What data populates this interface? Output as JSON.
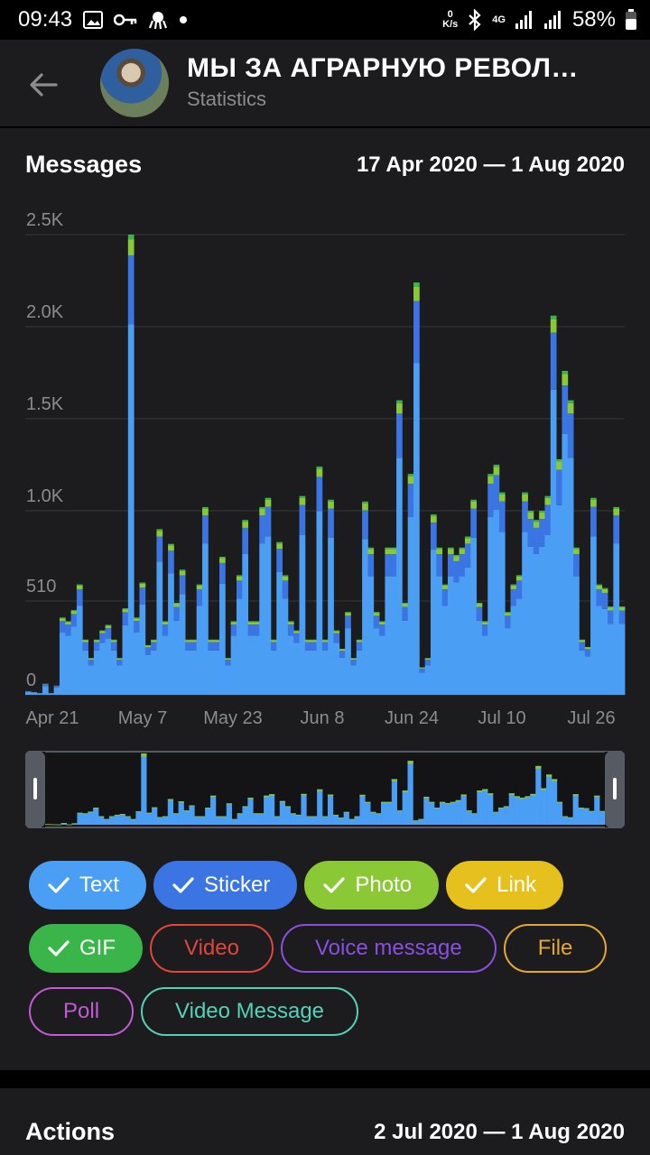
{
  "status": {
    "time": "09:43",
    "speed_value": "0",
    "speed_unit": "K/s",
    "network": "4G",
    "battery": "58%"
  },
  "header": {
    "title": "МЫ ЗА АГРАРНУЮ РЕВОЛ…",
    "subtitle": "Statistics"
  },
  "messages": {
    "title": "Messages",
    "range": "17 Apr 2020 — 1 Aug 2020",
    "y_labels": [
      "2.5K",
      "2.0K",
      "1.5K",
      "1.0K",
      "510",
      "0"
    ],
    "x_labels": [
      "Apr 21",
      "May 7",
      "May 23",
      "Jun 8",
      "Jun 24",
      "Jul 10",
      "Jul 26"
    ]
  },
  "chart_data": {
    "type": "bar",
    "stacked": true,
    "x_start": "17 Apr 2020",
    "x_end": "1 Aug 2020",
    "ylim": [
      0,
      2500
    ],
    "y_ticks": [
      0,
      510,
      1000,
      1500,
      2000,
      2500
    ],
    "colors": {
      "Text": "#4a9ff5",
      "Sticker": "#3b74e3",
      "Photo": "#8bc835",
      "GIF": "#39b54a"
    },
    "totals": [
      20,
      15,
      10,
      60,
      10,
      50,
      420,
      400,
      460,
      600,
      300,
      200,
      300,
      350,
      380,
      300,
      200,
      470,
      2500,
      420,
      610,
      270,
      300,
      900,
      400,
      820,
      500,
      680,
      300,
      300,
      600,
      1020,
      300,
      300,
      750,
      200,
      400,
      650,
      950,
      400,
      400,
      1020,
      1070,
      300,
      830,
      650,
      400,
      350,
      1080,
      300,
      300,
      1240,
      300,
      1060,
      350,
      250,
      450,
      200,
      300,
      1050,
      800,
      450,
      400,
      800,
      800,
      1600,
      500,
      1200,
      2240,
      150,
      200,
      980,
      800,
      600,
      800,
      760,
      800,
      860,
      1060,
      500,
      400,
      1200,
      1250,
      1100,
      450,
      600,
      650,
      1100,
      1000,
      950,
      1000,
      1080,
      2060,
      1280,
      1760,
      1600,
      800,
      300,
      260,
      1070,
      600,
      580,
      480,
      1020,
      480
    ],
    "sticker_frac": 0.15,
    "photo_frac": 0.035,
    "gif_frac": 0.01
  },
  "filters": [
    {
      "label": "Text",
      "active": true,
      "color": "#4a9ff5"
    },
    {
      "label": "Sticker",
      "active": true,
      "color": "#3b74e3"
    },
    {
      "label": "Photo",
      "active": true,
      "color": "#8bc835"
    },
    {
      "label": "Link",
      "active": true,
      "color": "#e6c01d"
    },
    {
      "label": "GIF",
      "active": true,
      "color": "#39b54a"
    },
    {
      "label": "Video",
      "active": false,
      "color": "#e0463c"
    },
    {
      "label": "Voice message",
      "active": false,
      "color": "#8a4fe0"
    },
    {
      "label": "File",
      "active": false,
      "color": "#e3a832"
    },
    {
      "label": "Poll",
      "active": false,
      "color": "#c35ad6"
    },
    {
      "label": "Video Message",
      "active": false,
      "color": "#55d1b8"
    }
  ],
  "actions": {
    "title": "Actions",
    "range": "2 Jul 2020 — 1 Aug 2020"
  }
}
